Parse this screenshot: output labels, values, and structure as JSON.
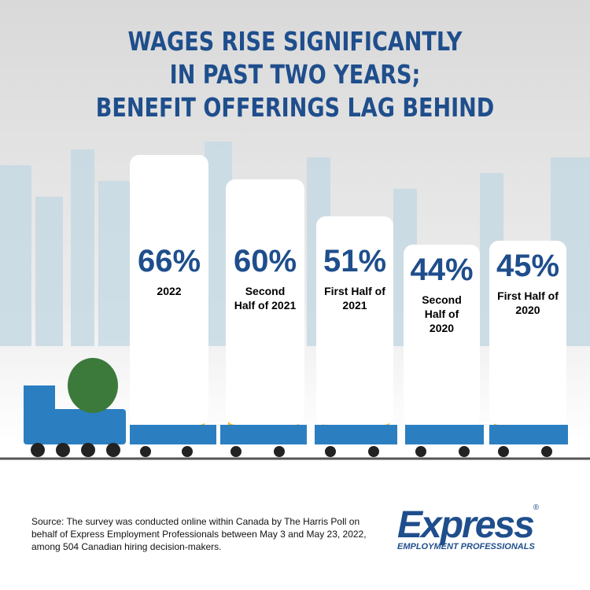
{
  "chart_data": {
    "type": "bar",
    "title": [
      "WAGES RISE SIGNIFICANTLY",
      "IN PAST TWO YEARS;",
      "BENEFIT OFFERINGS LAG BEHIND"
    ],
    "categories": [
      "2022",
      "Second Half of 2021",
      "First Half of 2021",
      "Second Half of 2020",
      "First Half of 2020"
    ],
    "values": [
      66,
      60,
      51,
      44,
      45
    ],
    "value_labels": [
      "66%",
      "60%",
      "51%",
      "44%",
      "45%"
    ],
    "color": "#ffffff"
  },
  "source": "Source: The survey was conducted online within Canada by The Harris Poll on behalf of Express Employment Professionals between May 3 and May 23, 2022, among 504 Canadian hiring decision-makers.",
  "logo": {
    "name": "Express",
    "mark": "®",
    "tagline": "EMPLOYMENT PROFESSIONALS"
  }
}
